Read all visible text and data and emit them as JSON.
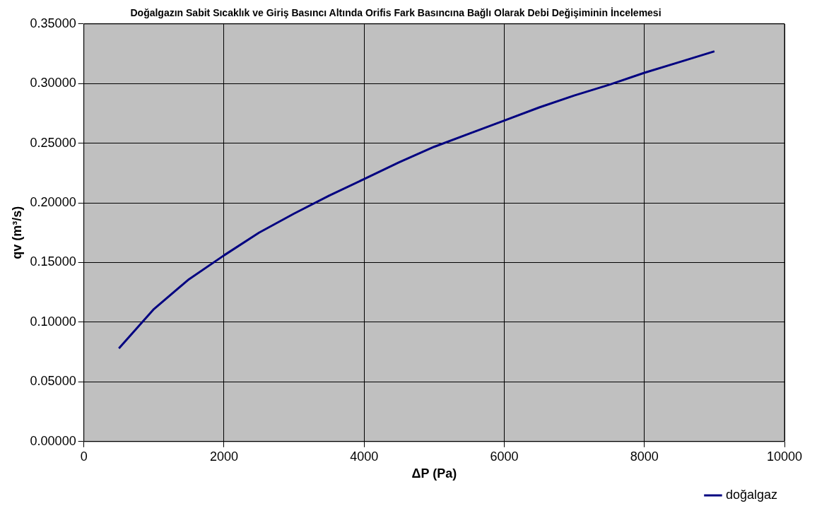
{
  "chart_data": {
    "type": "line",
    "title": "Doğalgazın Sabit Sıcaklık ve Giriş Basıncı Altında Orifis Fark Basıncına Bağlı Olarak Debi Değişiminin İncelemesi",
    "xlabel": "ΔP (Pa)",
    "ylabel": "qv (m³/s)",
    "x": [
      500,
      1000,
      1500,
      2000,
      2500,
      3000,
      3500,
      4000,
      4500,
      5000,
      5500,
      6000,
      6500,
      7000,
      7500,
      8000,
      8500,
      9000
    ],
    "series": [
      {
        "name": "doğalgaz",
        "color": "#000080",
        "values": [
          0.078,
          0.111,
          0.136,
          0.156,
          0.175,
          0.191,
          0.206,
          0.22,
          0.234,
          0.247,
          0.258,
          0.269,
          0.28,
          0.29,
          0.299,
          0.309,
          0.318,
          0.327
        ]
      }
    ],
    "xlim": [
      0,
      10000
    ],
    "xticks": [
      0,
      2000,
      4000,
      6000,
      8000,
      10000
    ],
    "ylim": [
      0,
      0.35
    ],
    "yticks": [
      {
        "value": 0,
        "label": "0.00000"
      },
      {
        "value": 0.05,
        "label": "0.05000"
      },
      {
        "value": 0.1,
        "label": "0.10000"
      },
      {
        "value": 0.15,
        "label": "0.15000"
      },
      {
        "value": 0.2,
        "label": "0.20000"
      },
      {
        "value": 0.25,
        "label": "0.25000"
      },
      {
        "value": 0.3,
        "label": "0.30000"
      },
      {
        "value": 0.35,
        "label": "0.35000"
      }
    ],
    "grid": true,
    "legend": "bottom right",
    "marker": "none",
    "line_style": "solid"
  }
}
